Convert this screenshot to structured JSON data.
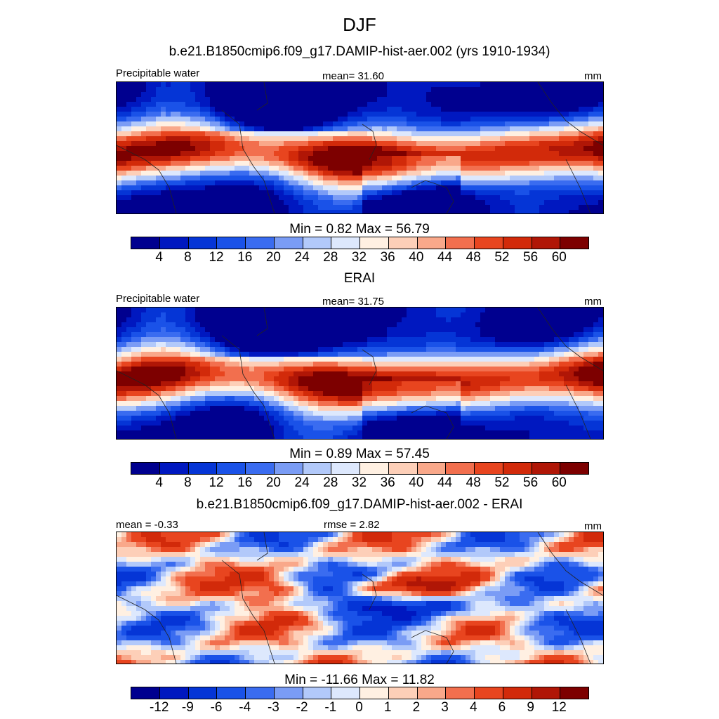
{
  "title": "DJF",
  "subtitle1": "b.e21.B1850cmip6.f09_g17.DAMIP-hist-aer.002 (yrs 1910-1934)",
  "subtitle2": "ERAI",
  "subtitle3": "b.e21.B1850cmip6.f09_g17.DAMIP-hist-aer.002 - ERAI",
  "chart_data": [
    {
      "type": "heatmap",
      "title": "b.e21.B1850cmip6.f09_g17.DAMIP-hist-aer.002 (yrs 1910-1934)",
      "variable": "Precipitable water",
      "stat_label": "mean=  31.60",
      "units": "mm",
      "minmax": "Min =   0.82 Max =  56.79",
      "min": 0.82,
      "max": 56.79,
      "mean": 31.6,
      "colorbar_ticks": [
        "4",
        "8",
        "12",
        "16",
        "20",
        "24",
        "28",
        "32",
        "36",
        "40",
        "44",
        "48",
        "52",
        "56",
        "60"
      ]
    },
    {
      "type": "heatmap",
      "title": "ERAI",
      "variable": "Precipitable water",
      "stat_label": "mean=  31.75",
      "units": "mm",
      "minmax": "Min =   0.89 Max =  57.45",
      "min": 0.89,
      "max": 57.45,
      "mean": 31.75,
      "colorbar_ticks": [
        "4",
        "8",
        "12",
        "16",
        "20",
        "24",
        "28",
        "32",
        "36",
        "40",
        "44",
        "48",
        "52",
        "56",
        "60"
      ]
    },
    {
      "type": "heatmap",
      "title": "b.e21.B1850cmip6.f09_g17.DAMIP-hist-aer.002 - ERAI",
      "mean_label": "mean =  -0.33",
      "rmse_label": "rmse =   2.82",
      "units": "mm",
      "minmax": "Min = -11.66 Max =  11.82",
      "min": -11.66,
      "max": 11.82,
      "mean": -0.33,
      "rmse": 2.82,
      "colorbar_ticks": [
        "-12",
        "-9",
        "-6",
        "-4",
        "-3",
        "-2",
        "-1",
        "0",
        "1",
        "2",
        "3",
        "4",
        "6",
        "9",
        "12"
      ]
    }
  ],
  "colors": [
    "#00008f",
    "#0018c0",
    "#0535d6",
    "#1a52e8",
    "#3a6cf0",
    "#7a9cf5",
    "#b2c9fa",
    "#dde8fd",
    "#fff0e2",
    "#fdcfb8",
    "#f9a88a",
    "#f26f4e",
    "#e8451f",
    "#d22a0a",
    "#b01606",
    "#7d0000"
  ]
}
